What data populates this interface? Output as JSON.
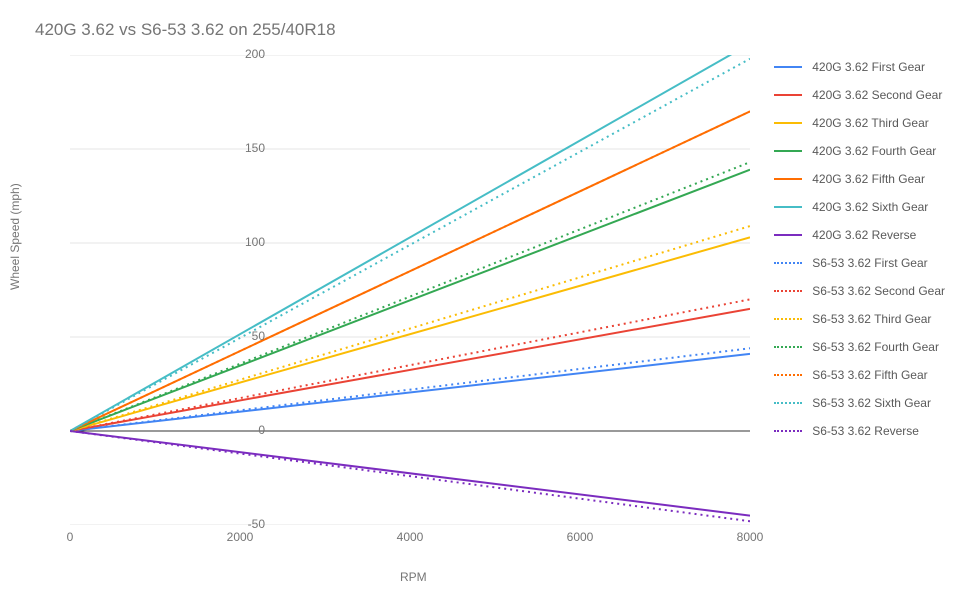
{
  "chart": {
    "type": "line",
    "title": "420G 3.62 vs S6-53 3.62 on 255/40R18",
    "title_color": "#757575",
    "title_fontsize": 17,
    "background_color": "#ffffff",
    "x_axis": {
      "label": "RPM",
      "min": 0,
      "max": 8000,
      "ticks": [
        0,
        2000,
        4000,
        6000,
        8000
      ],
      "label_fontsize": 12,
      "label_color": "#757575"
    },
    "y_axis": {
      "label": "Wheel Speed (mph)",
      "min": -50,
      "max": 200,
      "ticks": [
        -50,
        0,
        50,
        100,
        150,
        200
      ],
      "label_fontsize": 12,
      "label_color": "#757575"
    },
    "grid_color": "#e6e6e6",
    "zero_line_color": "#333333",
    "line_width": 2,
    "series": [
      {
        "label": "420G 3.62 First Gear",
        "color": "#4285f4",
        "style": "solid",
        "y_at_8000": 41
      },
      {
        "label": "420G 3.62 Second Gear",
        "color": "#ea4335",
        "style": "solid",
        "y_at_8000": 65
      },
      {
        "label": "420G 3.62 Third Gear",
        "color": "#fbbc04",
        "style": "solid",
        "y_at_8000": 103
      },
      {
        "label": "420G 3.62 Fourth Gear",
        "color": "#34a853",
        "style": "solid",
        "y_at_8000": 139
      },
      {
        "label": "420G 3.62 Fifth Gear",
        "color": "#ff6d01",
        "style": "solid",
        "y_at_8000": 170
      },
      {
        "label": "420G 3.62 Sixth Gear",
        "color": "#46bdc6",
        "style": "solid",
        "y_at_8000": 206
      },
      {
        "label": "420G 3.62 Reverse",
        "color": "#7b2cbf",
        "style": "solid",
        "y_at_8000": -45
      },
      {
        "label": "S6-53 3.62 First Gear",
        "color": "#4285f4",
        "style": "dotted",
        "y_at_8000": 44
      },
      {
        "label": "S6-53 3.62 Second Gear",
        "color": "#ea4335",
        "style": "dotted",
        "y_at_8000": 70
      },
      {
        "label": "S6-53 3.62 Third Gear",
        "color": "#fbbc04",
        "style": "dotted",
        "y_at_8000": 109
      },
      {
        "label": "S6-53 3.62 Fourth Gear",
        "color": "#34a853",
        "style": "dotted",
        "y_at_8000": 143
      },
      {
        "label": "S6-53 3.62 Fifth Gear",
        "color": "#ff6d01",
        "style": "dotted",
        "y_at_8000": 170
      },
      {
        "label": "S6-53 3.62 Sixth Gear",
        "color": "#46bdc6",
        "style": "dotted",
        "y_at_8000": 198
      },
      {
        "label": "S6-53 3.62 Reverse",
        "color": "#7b2cbf",
        "style": "dotted",
        "y_at_8000": -48
      }
    ]
  }
}
